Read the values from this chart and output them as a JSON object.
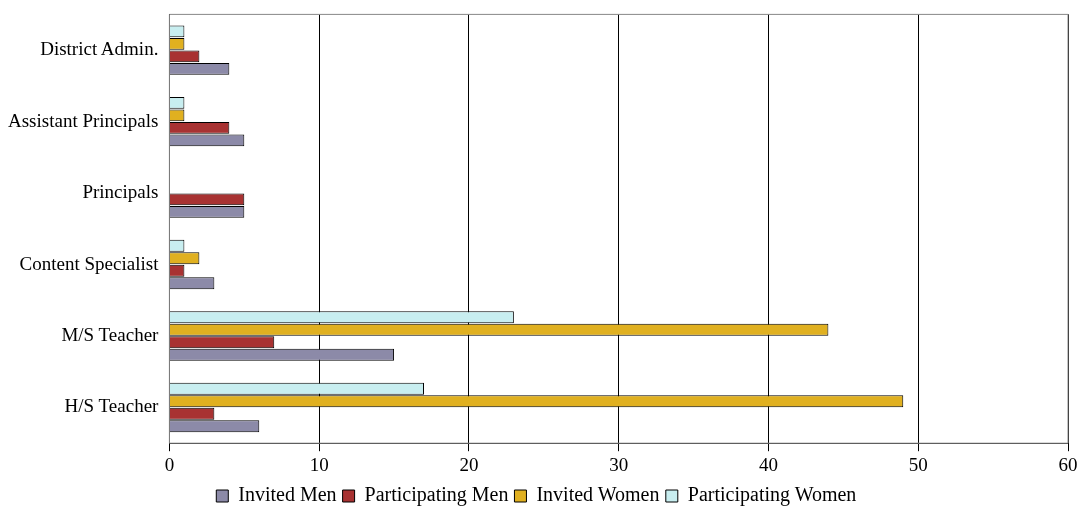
{
  "chart_data": {
    "type": "bar",
    "orientation": "horizontal",
    "categories": [
      "District Admin.",
      "Assistant Principals",
      "Principals",
      "Content Specialist",
      "M/S Teacher",
      "H/S Teacher"
    ],
    "series": [
      {
        "name": "Invited Men",
        "color": "#8c8aa8",
        "values": [
          4,
          5,
          5,
          3,
          15,
          6
        ]
      },
      {
        "name": "Participating Men",
        "color": "#a83232",
        "values": [
          2,
          4,
          5,
          1,
          7,
          3
        ]
      },
      {
        "name": "Invited Women",
        "color": "#e0b020",
        "values": [
          1,
          1,
          0,
          2,
          44,
          49
        ]
      },
      {
        "name": "Participating Women",
        "color": "#c8eef0",
        "values": [
          1,
          1,
          0,
          1,
          23,
          17
        ]
      }
    ],
    "xlim": [
      0,
      60
    ],
    "xticks": [
      0,
      10,
      20,
      30,
      40,
      50,
      60
    ],
    "grid": "x",
    "legend": "bottom"
  }
}
